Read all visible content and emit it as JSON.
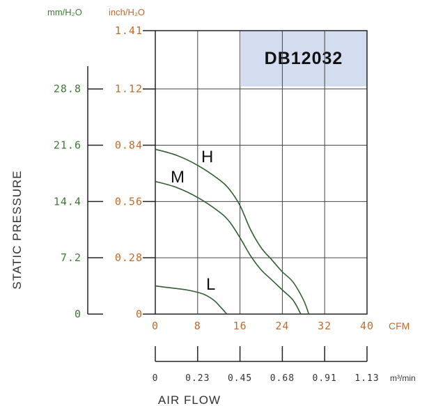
{
  "chart_data": {
    "type": "line",
    "model": "DB12032",
    "xlabel": "AIR FLOW",
    "ylabel": "STATIC PRESSURE",
    "x_unit": "CFM",
    "x2_unit": "m³/min",
    "y_unit_left": "mm/H₂O",
    "y_unit_right": "inch/H₂O",
    "xlim": [
      0,
      40
    ],
    "ylim": [
      0,
      1.41
    ],
    "x_ticks": [
      "0",
      "8",
      "16",
      "24",
      "32",
      "40"
    ],
    "x2_ticks": [
      "0",
      "0.23",
      "0.45",
      "0.68",
      "0.91",
      "1.13"
    ],
    "y_ticks_inch": [
      "0",
      "0.28",
      "0.56",
      "0.84",
      "1.12",
      "1.41"
    ],
    "y_ticks_mm": [
      "0",
      "7.2",
      "14.4",
      "21.6",
      "28.8"
    ],
    "grid": true,
    "series": [
      {
        "name": "H",
        "x": [
          0,
          4,
          8,
          12,
          14,
          16,
          18,
          20,
          22,
          24,
          26,
          28,
          29
        ],
        "y": [
          0.82,
          0.79,
          0.74,
          0.67,
          0.62,
          0.54,
          0.42,
          0.33,
          0.27,
          0.21,
          0.16,
          0.07,
          0
        ]
      },
      {
        "name": "M",
        "x": [
          0,
          4,
          8,
          12,
          14,
          16,
          18,
          20,
          22,
          24,
          26,
          27.5
        ],
        "y": [
          0.66,
          0.63,
          0.58,
          0.51,
          0.46,
          0.38,
          0.29,
          0.22,
          0.17,
          0.12,
          0.07,
          0
        ]
      },
      {
        "name": "L",
        "x": [
          0,
          3,
          6,
          9,
          11,
          12.5,
          13.5
        ],
        "y": [
          0.14,
          0.13,
          0.12,
          0.1,
          0.07,
          0.03,
          0
        ]
      }
    ]
  },
  "colors": {
    "curve": "#2f5e2f",
    "grid": "#444444",
    "model_box": "#d3ddef",
    "green_labels": "#3d7a34",
    "orange_labels": "#c4692a"
  }
}
